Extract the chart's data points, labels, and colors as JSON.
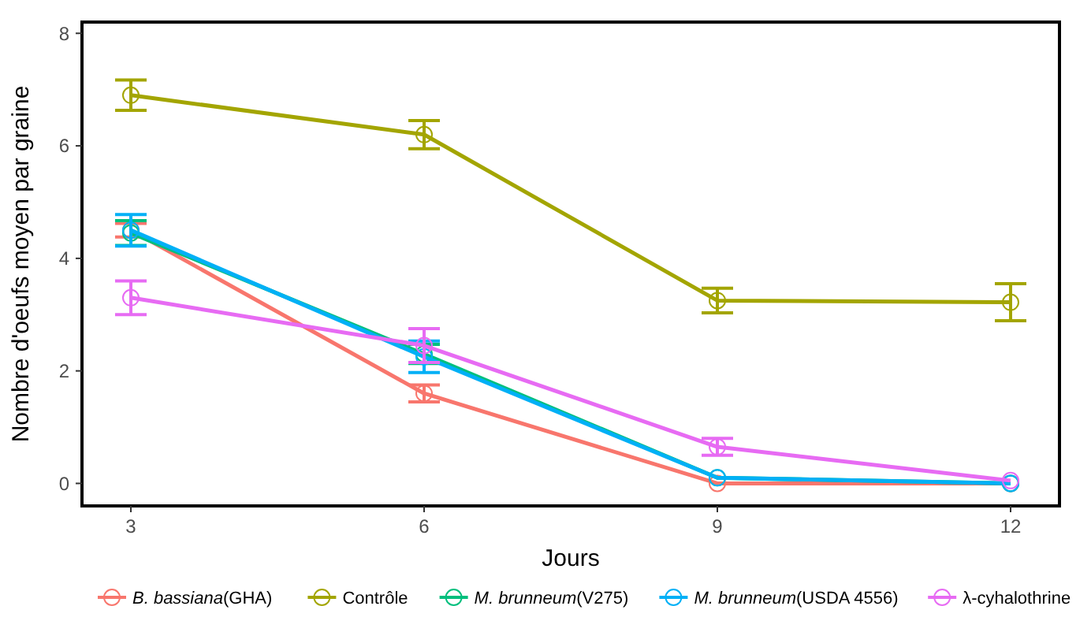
{
  "chart_data": {
    "type": "line",
    "xlabel": "Jours",
    "ylabel": "Nombre d'oeufs moyen par graine",
    "x": [
      3,
      6,
      9,
      12
    ],
    "xlim": [
      2.5,
      12.5
    ],
    "xticks": [
      3,
      6,
      9,
      12
    ],
    "ylim": [
      -0.4,
      8.2
    ],
    "yticks": [
      0,
      2,
      4,
      6,
      8
    ],
    "grid": false,
    "legend": "bottom",
    "marker": "circle",
    "line_style": "solid",
    "series": [
      {
        "name": "B. bassiana(GHA)",
        "color": "#f8766d",
        "values": [
          4.5,
          1.6,
          0,
          0
        ],
        "errors": [
          0.12,
          0.15,
          null,
          null
        ]
      },
      {
        "name": "Contrôle",
        "color": "#a3a500",
        "values": [
          6.9,
          6.2,
          3.25,
          3.22
        ],
        "errors": [
          0.27,
          0.25,
          0.22,
          0.33
        ]
      },
      {
        "name": "M. brunneum(V275)",
        "color": "#00bf7d",
        "values": [
          4.45,
          2.3,
          0.1,
          0
        ],
        "errors": [
          0.22,
          0.17,
          null,
          null
        ]
      },
      {
        "name": "M. brunneum(USDA 4556)",
        "color": "#00b0f6",
        "values": [
          4.5,
          2.25,
          0.1,
          0
        ],
        "errors": [
          0.28,
          0.28,
          null,
          null
        ]
      },
      {
        "name": "λ-cyhalothrine",
        "color": "#e76bf3",
        "values": [
          3.3,
          2.45,
          0.65,
          0.05
        ],
        "errors": [
          0.3,
          0.3,
          0.15,
          null
        ]
      }
    ]
  }
}
